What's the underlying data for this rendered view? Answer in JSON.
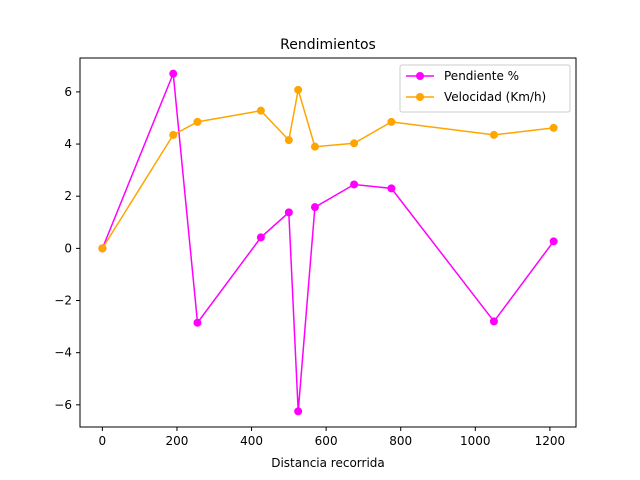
{
  "chart_data": {
    "type": "line",
    "title": "Rendimientos",
    "xlabel": "Distancia recorrida",
    "ylabel": "",
    "xlim": [
      -60,
      1270
    ],
    "ylim": [
      -6.85,
      7.3
    ],
    "xticks": [
      0,
      200,
      400,
      600,
      800,
      1000,
      1200
    ],
    "yticks": [
      -6,
      -4,
      -2,
      0,
      2,
      4,
      6
    ],
    "xtick_labels": [
      "0",
      "200",
      "400",
      "600",
      "800",
      "1000",
      "1200"
    ],
    "ytick_labels": [
      "−6",
      "−4",
      "−2",
      "0",
      "2",
      "4",
      "6"
    ],
    "grid": false,
    "legend_position": "top-right",
    "x": [
      0,
      190,
      255,
      425,
      500,
      525,
      570,
      675,
      775,
      1050,
      1210
    ],
    "series": [
      {
        "name": "Pendiente %",
        "color": "#ff00ff",
        "values": [
          0.0,
          6.7,
          -2.85,
          0.42,
          1.38,
          -6.25,
          1.58,
          2.45,
          2.3,
          -2.8,
          0.27
        ]
      },
      {
        "name": "Velocidad (Km/h)",
        "color": "#ffa500",
        "values": [
          0.0,
          4.35,
          4.85,
          5.28,
          4.15,
          6.08,
          3.9,
          4.03,
          4.85,
          4.35,
          4.62
        ]
      }
    ]
  }
}
